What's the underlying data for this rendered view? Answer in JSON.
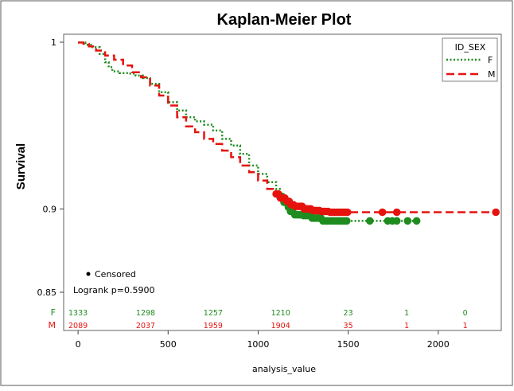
{
  "chart_data": {
    "type": "line",
    "title": "Kaplan-Meier Plot",
    "xlabel": "analysis_value",
    "ylabel": "Survival",
    "xlim": [
      -80,
      2350
    ],
    "ylim": [
      0.845,
      1.005
    ],
    "x_ticks": [
      0,
      500,
      1000,
      1500,
      2000
    ],
    "x_tick_labels": [
      "0",
      "500",
      "1000",
      "1500",
      "2000"
    ],
    "y_ticks": [
      0.85,
      0.9,
      1
    ],
    "y_tick_labels": [
      "0.85",
      "0.9",
      "1"
    ],
    "grid": false,
    "legend": {
      "title": "ID_SEX",
      "placement": "top-right",
      "entries": [
        {
          "label": "F",
          "color": "#1e8c1e",
          "style": "dotted"
        },
        {
          "label": "M",
          "color": "#e6120e",
          "style": "dashed"
        }
      ]
    },
    "annotations": {
      "censored_label": "Censored",
      "logrank_text": "Logrank p=0.5900"
    },
    "series": [
      {
        "name": "F",
        "color": "#1e8c1e",
        "style": "dotted",
        "x": [
          0,
          40,
          80,
          120,
          150,
          170,
          190,
          230,
          280,
          320,
          360,
          400,
          450,
          500,
          550,
          600,
          650,
          700,
          750,
          800,
          850,
          900,
          950,
          1000,
          1050,
          1100,
          1120,
          1140,
          1160,
          1180,
          1200,
          1250,
          1300,
          1350,
          1400,
          1450,
          1500,
          1550,
          1600,
          1700,
          1750,
          1800,
          1880
        ],
        "y": [
          0.9998,
          0.9985,
          0.997,
          0.993,
          0.988,
          0.985,
          0.9825,
          0.9815,
          0.9812,
          0.98,
          0.9785,
          0.975,
          0.97,
          0.964,
          0.959,
          0.955,
          0.9525,
          0.9505,
          0.947,
          0.942,
          0.938,
          0.933,
          0.926,
          0.921,
          0.916,
          0.912,
          0.9075,
          0.904,
          0.901,
          0.8985,
          0.8965,
          0.896,
          0.8945,
          0.8928,
          0.8928,
          0.8928,
          0.8928,
          0.8928,
          0.8928,
          0.8928,
          0.8928,
          0.8928,
          0.8928
        ],
        "censored_x": [
          1620,
          1720,
          1745,
          1770,
          1830,
          1880
        ],
        "censored_y": [
          0.8928,
          0.8928,
          0.8928,
          0.8928,
          0.8928,
          0.8928
        ]
      },
      {
        "name": "M",
        "color": "#e6120e",
        "style": "dashed",
        "x": [
          0,
          30,
          60,
          100,
          150,
          200,
          250,
          300,
          350,
          400,
          450,
          500,
          550,
          600,
          650,
          700,
          750,
          800,
          850,
          900,
          950,
          1000,
          1050,
          1100,
          1120,
          1150,
          1180,
          1200,
          1250,
          1300,
          1350,
          1400,
          1450,
          1500,
          1600,
          1700,
          1800,
          1900,
          2000,
          2100,
          2200,
          2320
        ],
        "y": [
          0.9998,
          0.999,
          0.9975,
          0.995,
          0.992,
          0.9895,
          0.986,
          0.982,
          0.979,
          0.974,
          0.968,
          0.962,
          0.955,
          0.9495,
          0.946,
          0.942,
          0.939,
          0.935,
          0.931,
          0.926,
          0.922,
          0.917,
          0.912,
          0.909,
          0.9065,
          0.9045,
          0.9025,
          0.9015,
          0.9,
          0.899,
          0.8985,
          0.898,
          0.898,
          0.898,
          0.898,
          0.898,
          0.898,
          0.898,
          0.898,
          0.898,
          0.898,
          0.898
        ],
        "censored_x": [
          1690,
          1770,
          2320
        ],
        "censored_y": [
          0.898,
          0.898,
          0.898
        ]
      }
    ],
    "number_at_risk": {
      "x": [
        0,
        375,
        750,
        1125,
        1500,
        1825,
        2150
      ],
      "rows": [
        {
          "label": "F",
          "color": "#1e8c1e",
          "values": [
            "1333",
            "1298",
            "1257",
            "1210",
            "23",
            "1",
            "0"
          ]
        },
        {
          "label": "M",
          "color": "#e6120e",
          "values": [
            "2089",
            "2037",
            "1959",
            "1904",
            "35",
            "1",
            "1"
          ]
        }
      ]
    }
  }
}
